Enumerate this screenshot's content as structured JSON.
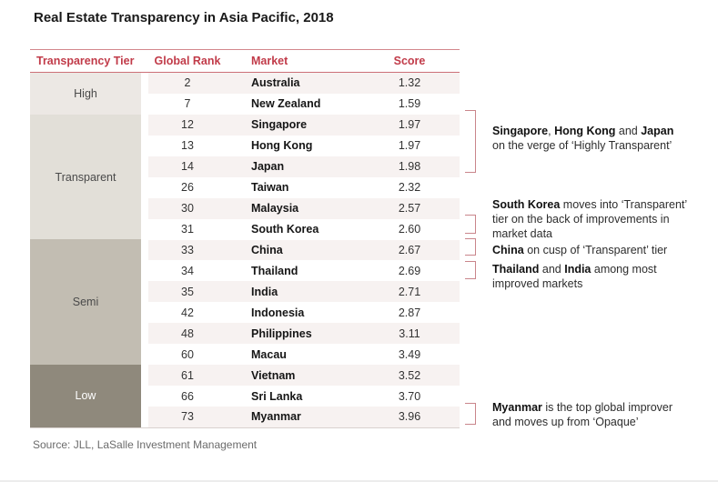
{
  "title": "Real Estate Transparency in Asia Pacific, 2018",
  "source": "Source: JLL, LaSalle Investment Management",
  "colors": {
    "header_red": "#c13b49",
    "rule_red": "#d3868c",
    "bracket_red": "#c9858b",
    "row_stripe": "#f7f2f1",
    "tier_high": "#ece8e4",
    "tier_transparent": "#e2dfd8",
    "tier_semi": "#c2bdb2",
    "tier_low": "#8f897c",
    "source_gray": "#6b6b6b"
  },
  "table": {
    "headers": {
      "tier": "Transparency Tier",
      "rank": "Global Rank",
      "market": "Market",
      "score": "Score"
    },
    "tiers": [
      {
        "label": "High",
        "rows": 2
      },
      {
        "label": "Transparent",
        "rows": 6
      },
      {
        "label": "Semi",
        "rows": 6
      },
      {
        "label": "Low",
        "rows": 3
      }
    ],
    "rows": [
      {
        "rank": "2",
        "market": "Australia",
        "score": "1.32"
      },
      {
        "rank": "7",
        "market": "New Zealand",
        "score": "1.59"
      },
      {
        "rank": "12",
        "market": "Singapore",
        "score": "1.97"
      },
      {
        "rank": "13",
        "market": "Hong Kong",
        "score": "1.97"
      },
      {
        "rank": "14",
        "market": "Japan",
        "score": "1.98"
      },
      {
        "rank": "26",
        "market": "Taiwan",
        "score": "2.32"
      },
      {
        "rank": "30",
        "market": "Malaysia",
        "score": "2.57"
      },
      {
        "rank": "31",
        "market": "South Korea",
        "score": "2.60"
      },
      {
        "rank": "33",
        "market": "China",
        "score": "2.67"
      },
      {
        "rank": "34",
        "market": "Thailand",
        "score": "2.69"
      },
      {
        "rank": "35",
        "market": "India",
        "score": "2.71"
      },
      {
        "rank": "42",
        "market": "Indonesia",
        "score": "2.87"
      },
      {
        "rank": "48",
        "market": "Philippines",
        "score": "3.11"
      },
      {
        "rank": "60",
        "market": "Macau",
        "score": "3.49"
      },
      {
        "rank": "61",
        "market": "Vietnam",
        "score": "3.52"
      },
      {
        "rank": "66",
        "market": "Sri Lanka",
        "score": "3.70"
      },
      {
        "rank": "73",
        "market": "Myanmar",
        "score": "3.96"
      }
    ]
  },
  "annotations": [
    {
      "lines": [
        {
          "segments": [
            {
              "text": "Singapore",
              "bold": true
            },
            {
              "text": ", ",
              "bold": false
            },
            {
              "text": "Hong Kong",
              "bold": true
            },
            {
              "text": " and ",
              "bold": false
            },
            {
              "text": "Japan",
              "bold": true
            }
          ]
        },
        {
          "segments": [
            {
              "text": "on the verge of ‘Highly Transparent’",
              "bold": false
            }
          ]
        }
      ]
    },
    {
      "lines": [
        {
          "segments": [
            {
              "text": "South Korea",
              "bold": true
            },
            {
              "text": " moves into ‘Transparent’",
              "bold": false
            }
          ]
        },
        {
          "segments": [
            {
              "text": "tier on the back of improvements in",
              "bold": false
            }
          ]
        },
        {
          "segments": [
            {
              "text": "market data",
              "bold": false
            }
          ]
        }
      ]
    },
    {
      "lines": [
        {
          "segments": [
            {
              "text": "China",
              "bold": true
            },
            {
              "text": " on cusp of ‘Transparent’ tier",
              "bold": false
            }
          ]
        }
      ]
    },
    {
      "lines": [
        {
          "segments": [
            {
              "text": "Thailand",
              "bold": true
            },
            {
              "text": " and ",
              "bold": false
            },
            {
              "text": "India",
              "bold": true
            },
            {
              "text": " among most",
              "bold": false
            }
          ]
        },
        {
          "segments": [
            {
              "text": "improved markets",
              "bold": false
            }
          ]
        }
      ]
    },
    {
      "lines": [
        {
          "segments": [
            {
              "text": "Myanmar",
              "bold": true
            },
            {
              "text": " is the top global improver",
              "bold": false
            }
          ]
        },
        {
          "segments": [
            {
              "text": "and moves up from ‘Opaque’",
              "bold": false
            }
          ]
        }
      ]
    }
  ],
  "chart_data": {
    "type": "table",
    "title": "Real Estate Transparency in Asia Pacific, 2018",
    "columns": [
      "Transparency Tier",
      "Global Rank",
      "Market",
      "Score"
    ],
    "rows": [
      [
        "High",
        2,
        "Australia",
        1.32
      ],
      [
        "High",
        7,
        "New Zealand",
        1.59
      ],
      [
        "Transparent",
        12,
        "Singapore",
        1.97
      ],
      [
        "Transparent",
        13,
        "Hong Kong",
        1.97
      ],
      [
        "Transparent",
        14,
        "Japan",
        1.98
      ],
      [
        "Transparent",
        26,
        "Taiwan",
        2.32
      ],
      [
        "Transparent",
        30,
        "Malaysia",
        2.57
      ],
      [
        "Transparent",
        31,
        "South Korea",
        2.6
      ],
      [
        "Semi",
        33,
        "China",
        2.67
      ],
      [
        "Semi",
        34,
        "Thailand",
        2.69
      ],
      [
        "Semi",
        35,
        "India",
        2.71
      ],
      [
        "Semi",
        42,
        "Indonesia",
        2.87
      ],
      [
        "Semi",
        48,
        "Philippines",
        3.11
      ],
      [
        "Semi",
        60,
        "Macau",
        3.49
      ],
      [
        "Low",
        61,
        "Vietnam",
        3.52
      ],
      [
        "Low",
        66,
        "Sri Lanka",
        3.7
      ],
      [
        "Low",
        73,
        "Myanmar",
        3.96
      ]
    ],
    "annotations": [
      "Singapore, Hong Kong and Japan on the verge of ‘Highly Transparent’",
      "South Korea moves into ‘Transparent’ tier on the back of improvements in market data",
      "China on cusp of ‘Transparent’ tier",
      "Thailand and India among most improved markets",
      "Myanmar is the top global improver and moves up from ‘Opaque’"
    ],
    "source": "Source: JLL, LaSalle Investment Management"
  }
}
